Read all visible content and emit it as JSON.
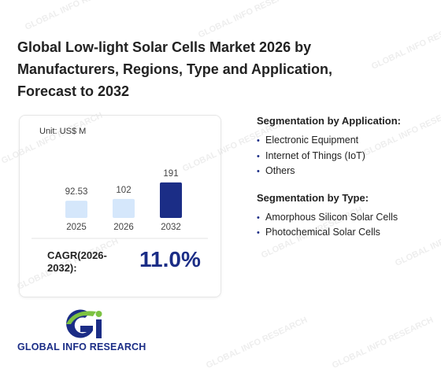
{
  "title": "Global Low-light Solar Cells Market 2026 by Manufacturers, Regions, Type and Application, Forecast to 2032",
  "chart_data": {
    "type": "bar",
    "unit": "Unit: US$ M",
    "categories": [
      "2025",
      "2026",
      "2032"
    ],
    "values": [
      92.53,
      102,
      191
    ],
    "colors": [
      "#d5e7fb",
      "#d5e7fb",
      "#1b2d86"
    ]
  },
  "cagr": {
    "label": "CAGR(2026-2032):",
    "value": "11.0%"
  },
  "segmentation": [
    {
      "heading": "Segmentation by Application:",
      "items": [
        "Electronic Equipment",
        "Internet of Things (IoT)",
        "Others"
      ]
    },
    {
      "heading": "Segmentation by Type:",
      "items": [
        "Amorphous Silicon Solar Cells",
        "Photochemical Solar Cells"
      ]
    }
  ],
  "logo": "GLOBAL INFO RESEARCH",
  "watermark": "GLOBAL INFO RESEARCH"
}
